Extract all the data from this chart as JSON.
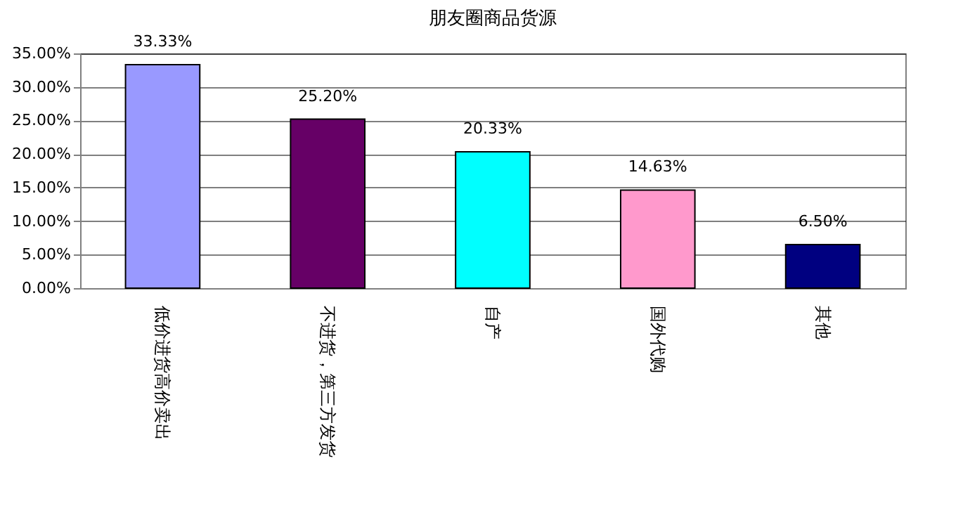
{
  "chart_data": {
    "type": "bar",
    "title": "朋友圈商品货源",
    "categories": [
      "低价进货高价卖出",
      "不进货，第三方发货",
      "自产",
      "国外代购",
      "其他"
    ],
    "values": [
      33.33,
      25.2,
      20.33,
      14.63,
      6.5
    ],
    "colors": [
      "#9999ff",
      "#660066",
      "#00ffff",
      "#ff99cc",
      "#000080"
    ],
    "value_labels": [
      "33.33%",
      "25.20%",
      "20.33%",
      "14.63%",
      "6.50%"
    ],
    "ylim": [
      0,
      35
    ],
    "yticks": [
      {
        "value": 0,
        "label": "0.00%"
      },
      {
        "value": 5,
        "label": "5.00%"
      },
      {
        "value": 10,
        "label": "10.00%"
      },
      {
        "value": 15,
        "label": "15.00%"
      },
      {
        "value": 20,
        "label": "20.00%"
      },
      {
        "value": 25,
        "label": "25.00%"
      },
      {
        "value": 30,
        "label": "30.00%"
      },
      {
        "value": 35,
        "label": "35.00%"
      }
    ],
    "grid": "y",
    "legend": false
  }
}
